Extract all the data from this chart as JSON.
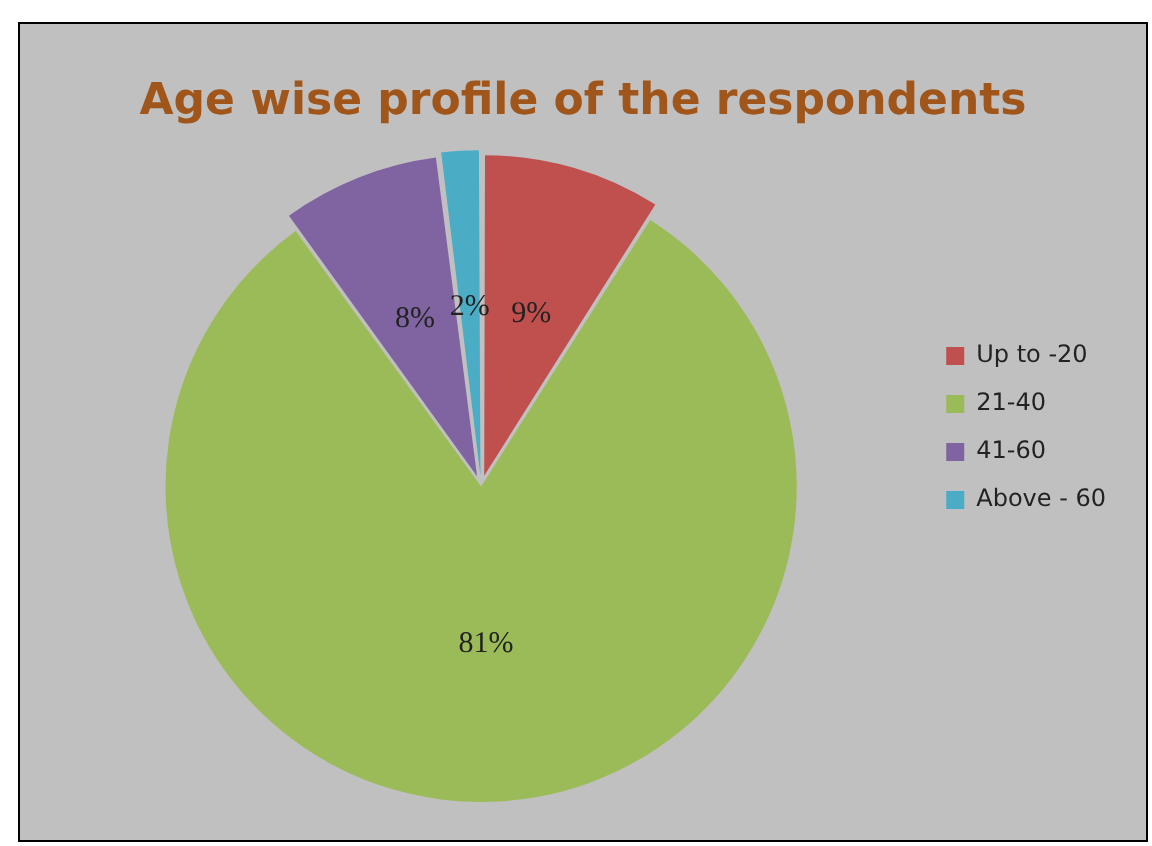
{
  "chart_data": {
    "type": "pie",
    "title": "Age wise profile of the respondents",
    "categories": [
      "Up to -20",
      "21-40",
      "41-60",
      "Above - 60"
    ],
    "values": [
      9,
      81,
      8,
      2
    ],
    "value_labels": [
      "9%",
      "81%",
      "8%",
      "2%"
    ],
    "colors": [
      "#c0504d",
      "#9bbb59",
      "#8064a2",
      "#4bacc6"
    ],
    "legend": "right"
  }
}
